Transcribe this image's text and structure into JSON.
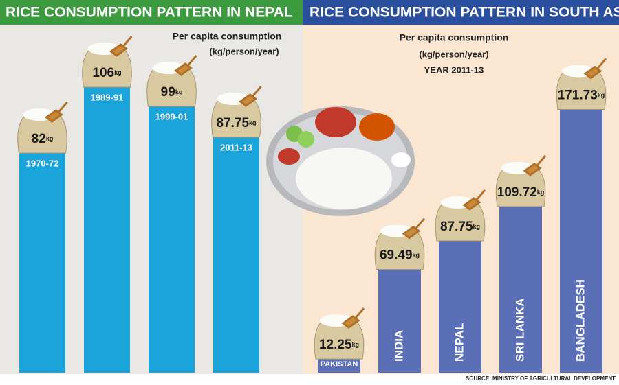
{
  "chart_data": [
    {
      "type": "bar",
      "title": "RICE CONSUMPTION PATTERN IN NEPAL",
      "subtitle": "Per capita consumption",
      "unit_label": "(kg/person/year)",
      "unit": "kg",
      "categories": [
        "1970-72",
        "1989-91",
        "1999-01",
        "2011-13"
      ],
      "values": [
        82,
        106,
        99,
        87.75
      ],
      "color": "#1ba4da"
    },
    {
      "type": "bar",
      "title": "RICE CONSUMPTION PATTERN IN SOUTH ASIA",
      "subtitle": "Per capita consumption",
      "unit_label": "(kg/person/year)",
      "period": "YEAR 2011-13",
      "unit": "kg",
      "categories": [
        "PAKISTAN",
        "INDIA",
        "NEPAL",
        "SRI LANKA",
        "BANGLADESH"
      ],
      "values": [
        12.25,
        69.49,
        87.75,
        109.72,
        171.73
      ],
      "color": "#5b6fb6"
    }
  ],
  "source": "SOURCE: MINISTRY OF AGRICULTURAL DEVELOPMENT"
}
